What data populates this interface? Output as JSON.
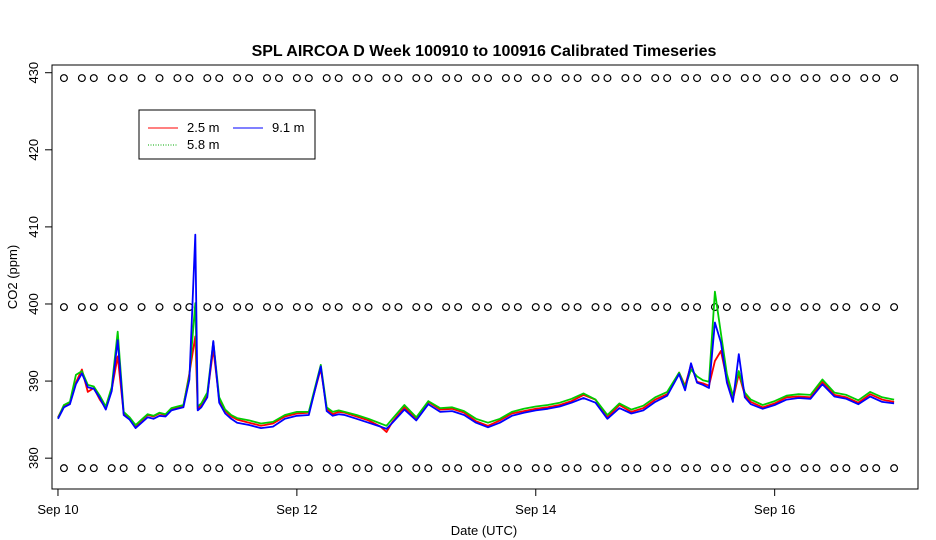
{
  "chart_data": {
    "type": "line",
    "title": "SPL AIRCOA D  Week 100910 to 100916  Calibrated Timeseries",
    "xlabel": "Date (UTC)",
    "ylabel": "CO2 (ppm)",
    "xlim": [
      -0.05,
      7.2
    ],
    "ylim": [
      376,
      431
    ],
    "x_ticks": [
      0,
      2,
      4,
      6
    ],
    "x_tick_labels": [
      "Sep 10",
      "Sep 12",
      "Sep 14",
      "Sep 16"
    ],
    "y_ticks": [
      380,
      390,
      400,
      410,
      420,
      430
    ],
    "y_tick_labels": [
      "380",
      "390",
      "400",
      "410",
      "420",
      "430"
    ],
    "legend_position": "top-left",
    "colors": {
      "2.5 m": "#ff0000",
      "5.8 m": "#00cc00",
      "9.1 m": "#0000ff",
      "calibration": "#000000"
    },
    "x_units": "days since Sep 10 00:00 UTC",
    "series": [
      {
        "name": "2.5 m",
        "color": "#ff0000",
        "style": "line",
        "x": [
          0,
          0.05,
          0.1,
          0.15,
          0.2,
          0.25,
          0.3,
          0.35,
          0.4,
          0.45,
          0.5,
          0.55,
          0.6,
          0.65,
          0.7,
          0.75,
          0.8,
          0.85,
          0.9,
          0.95,
          1,
          1.05,
          1.1,
          1.15,
          1.17,
          1.2,
          1.25,
          1.3,
          1.35,
          1.4,
          1.45,
          1.5,
          1.6,
          1.7,
          1.8,
          1.9,
          2,
          2.1,
          2.2,
          2.25,
          2.3,
          2.35,
          2.4,
          2.5,
          2.6,
          2.7,
          2.75,
          2.8,
          2.9,
          3,
          3.1,
          3.2,
          3.3,
          3.4,
          3.5,
          3.6,
          3.7,
          3.8,
          3.9,
          4,
          4.1,
          4.2,
          4.3,
          4.4,
          4.5,
          4.6,
          4.7,
          4.8,
          4.9,
          5,
          5.1,
          5.2,
          5.25,
          5.3,
          5.35,
          5.4,
          5.45,
          5.5,
          5.55,
          5.6,
          5.65,
          5.7,
          5.75,
          5.8,
          5.9,
          6,
          6.1,
          6.2,
          6.3,
          6.4,
          6.5,
          6.6,
          6.7,
          6.8,
          6.9,
          7
        ],
        "y": [
          385.3,
          386.8,
          387.2,
          389.8,
          391.5,
          388.6,
          389.1,
          387.6,
          386.5,
          388.9,
          393.2,
          385.8,
          385.2,
          384.1,
          384.9,
          385.6,
          385.4,
          385.8,
          385.6,
          386.4,
          386.6,
          386.8,
          391,
          395.8,
          386.4,
          386.9,
          388.2,
          394.2,
          387.6,
          386.1,
          385.4,
          385,
          384.6,
          384.2,
          384.5,
          385.4,
          385.8,
          385.9,
          391.6,
          386.4,
          385.7,
          386,
          385.9,
          385.4,
          384.9,
          384.1,
          383.4,
          384.7,
          386.6,
          385.1,
          387.3,
          386.3,
          386.4,
          385.9,
          384.8,
          384.2,
          384.9,
          385.8,
          386.1,
          386.4,
          386.6,
          386.9,
          387.4,
          388.2,
          387.6,
          385.3,
          386.9,
          386,
          386.5,
          387.6,
          388.3,
          391.1,
          389.4,
          392.1,
          389.9,
          389.7,
          389.4,
          392.6,
          393.9,
          390.2,
          387.6,
          390.9,
          388.2,
          387.3,
          386.6,
          387.1,
          387.9,
          388,
          387.9,
          389.9,
          388.2,
          387.9,
          387.2,
          388.3,
          387.6,
          387.3
        ]
      },
      {
        "name": "5.8 m",
        "color": "#00cc00",
        "style": "line",
        "x": [
          0,
          0.05,
          0.1,
          0.15,
          0.2,
          0.25,
          0.3,
          0.35,
          0.4,
          0.45,
          0.5,
          0.55,
          0.6,
          0.65,
          0.7,
          0.75,
          0.8,
          0.85,
          0.9,
          0.95,
          1,
          1.05,
          1.1,
          1.15,
          1.17,
          1.2,
          1.25,
          1.3,
          1.35,
          1.4,
          1.45,
          1.5,
          1.6,
          1.7,
          1.8,
          1.9,
          2,
          2.1,
          2.2,
          2.25,
          2.3,
          2.35,
          2.4,
          2.5,
          2.6,
          2.7,
          2.75,
          2.8,
          2.9,
          3,
          3.1,
          3.2,
          3.3,
          3.4,
          3.5,
          3.6,
          3.7,
          3.8,
          3.9,
          4,
          4.1,
          4.2,
          4.3,
          4.4,
          4.5,
          4.6,
          4.7,
          4.8,
          4.9,
          5,
          5.1,
          5.2,
          5.25,
          5.3,
          5.35,
          5.4,
          5.45,
          5.5,
          5.55,
          5.6,
          5.65,
          5.7,
          5.75,
          5.8,
          5.9,
          6,
          6.1,
          6.2,
          6.3,
          6.4,
          6.5,
          6.6,
          6.7,
          6.8,
          6.9,
          7
        ],
        "y": [
          385.2,
          386.9,
          387.3,
          390.8,
          391.3,
          389.5,
          389.3,
          388.1,
          386.7,
          389.2,
          396.4,
          386,
          385.3,
          384.3,
          385,
          385.7,
          385.5,
          385.9,
          385.7,
          386.5,
          386.7,
          386.9,
          390.7,
          400.1,
          386.7,
          387.1,
          388.5,
          395.1,
          387.9,
          386.3,
          385.6,
          385.2,
          384.9,
          384.5,
          384.7,
          385.6,
          386,
          386,
          392.1,
          386.6,
          386,
          386.2,
          386,
          385.6,
          385.1,
          384.5,
          384.2,
          385.1,
          386.9,
          385.3,
          387.4,
          386.5,
          386.6,
          386.1,
          385.1,
          384.6,
          385.1,
          386,
          386.4,
          386.7,
          386.9,
          387.2,
          387.7,
          388.4,
          387.6,
          385.6,
          387.1,
          386.3,
          386.8,
          387.9,
          388.6,
          391.1,
          389.2,
          391.5,
          390.6,
          390.1,
          389.9,
          401.6,
          396.2,
          390.9,
          388.1,
          391.3,
          388.5,
          387.6,
          386.9,
          387.4,
          388.1,
          388.3,
          388.2,
          390.2,
          388.5,
          388.2,
          387.5,
          388.6,
          387.9,
          387.6
        ]
      },
      {
        "name": "9.1 m",
        "color": "#0000ff",
        "style": "line",
        "x": [
          0,
          0.05,
          0.1,
          0.15,
          0.2,
          0.25,
          0.3,
          0.35,
          0.4,
          0.45,
          0.5,
          0.55,
          0.6,
          0.65,
          0.7,
          0.75,
          0.8,
          0.85,
          0.9,
          0.95,
          1,
          1.05,
          1.1,
          1.15,
          1.17,
          1.2,
          1.25,
          1.3,
          1.35,
          1.4,
          1.45,
          1.5,
          1.6,
          1.7,
          1.8,
          1.9,
          2,
          2.1,
          2.2,
          2.25,
          2.3,
          2.35,
          2.4,
          2.5,
          2.6,
          2.7,
          2.75,
          2.8,
          2.9,
          3,
          3.1,
          3.2,
          3.3,
          3.4,
          3.5,
          3.6,
          3.7,
          3.8,
          3.9,
          4,
          4.1,
          4.2,
          4.3,
          4.4,
          4.5,
          4.6,
          4.7,
          4.8,
          4.9,
          5,
          5.1,
          5.2,
          5.25,
          5.3,
          5.35,
          5.4,
          5.45,
          5.5,
          5.55,
          5.6,
          5.65,
          5.7,
          5.75,
          5.8,
          5.9,
          6,
          6.1,
          6.2,
          6.3,
          6.4,
          6.5,
          6.6,
          6.7,
          6.8,
          6.9,
          7
        ],
        "y": [
          385.1,
          386.6,
          387,
          389.6,
          391,
          389.2,
          389,
          387.8,
          386.3,
          388.7,
          395.3,
          385.6,
          385,
          383.9,
          384.6,
          385.3,
          385.1,
          385.5,
          385.4,
          386.2,
          386.4,
          386.6,
          390.2,
          409,
          386.2,
          386.6,
          387.9,
          395.2,
          387.2,
          385.8,
          385.1,
          384.6,
          384.3,
          383.9,
          384.1,
          385.1,
          385.5,
          385.6,
          391.9,
          386.1,
          385.5,
          385.7,
          385.6,
          385.1,
          384.6,
          384.1,
          383.8,
          384.6,
          386.3,
          384.9,
          387,
          386,
          386.1,
          385.6,
          384.6,
          384,
          384.6,
          385.5,
          385.9,
          386.2,
          386.4,
          386.7,
          387.2,
          387.8,
          387.2,
          385.1,
          386.5,
          385.8,
          386.2,
          387.3,
          388.1,
          390.9,
          388.8,
          392.3,
          389.8,
          389.5,
          389.1,
          397.6,
          395,
          389.8,
          387.3,
          393.5,
          387.9,
          387,
          386.4,
          386.9,
          387.6,
          387.8,
          387.7,
          389.6,
          388,
          387.7,
          387,
          388,
          387.3,
          387.1
        ]
      },
      {
        "name": "",
        "color": "#000000",
        "style": "points",
        "x": [
          0.05,
          0.2,
          0.3,
          0.45,
          0.55,
          0.7,
          0.85,
          1,
          1.1,
          1.25,
          1.35,
          1.5,
          1.6,
          1.75,
          1.85,
          2,
          2.1,
          2.25,
          2.35,
          2.5,
          2.6,
          2.75,
          2.85,
          3,
          3.1,
          3.25,
          3.35,
          3.5,
          3.6,
          3.75,
          3.85,
          4,
          4.1,
          4.25,
          4.35,
          4.5,
          4.6,
          4.75,
          4.85,
          5,
          5.1,
          5.25,
          5.35,
          5.5,
          5.6,
          5.75,
          5.85,
          6,
          6.1,
          6.25,
          6.35,
          6.5,
          6.6,
          6.75,
          6.85,
          7
        ],
        "y": [
          429.3,
          429.3,
          429.3,
          429.3,
          429.3,
          429.3,
          429.3,
          429.3,
          429.3,
          429.3,
          429.3,
          429.3,
          429.3,
          429.3,
          429.3,
          429.3,
          429.3,
          429.3,
          429.3,
          429.3,
          429.3,
          429.3,
          429.3,
          429.3,
          429.3,
          429.3,
          429.3,
          429.3,
          429.3,
          429.3,
          429.3,
          429.3,
          429.3,
          429.3,
          429.3,
          429.3,
          429.3,
          429.3,
          429.3,
          429.3,
          429.3,
          429.3,
          429.3,
          429.3,
          429.3,
          429.3,
          429.3,
          429.3,
          429.3,
          429.3,
          429.3,
          429.3,
          429.3,
          429.3,
          429.3,
          429.3
        ]
      },
      {
        "name": "",
        "color": "#000000",
        "style": "points",
        "x": [
          0.05,
          0.2,
          0.3,
          0.45,
          0.55,
          0.7,
          0.85,
          1,
          1.1,
          1.25,
          1.35,
          1.5,
          1.6,
          1.75,
          1.85,
          2,
          2.1,
          2.25,
          2.35,
          2.5,
          2.6,
          2.75,
          2.85,
          3,
          3.1,
          3.25,
          3.35,
          3.5,
          3.6,
          3.75,
          3.85,
          4,
          4.1,
          4.25,
          4.35,
          4.5,
          4.6,
          4.75,
          4.85,
          5,
          5.1,
          5.25,
          5.35,
          5.5,
          5.6,
          5.75,
          5.85,
          6,
          6.1,
          6.25,
          6.35,
          6.5,
          6.6,
          6.75,
          6.85,
          7
        ],
        "y": [
          399.6,
          399.6,
          399.6,
          399.6,
          399.6,
          399.6,
          399.6,
          399.6,
          399.6,
          399.6,
          399.6,
          399.6,
          399.6,
          399.6,
          399.6,
          399.6,
          399.6,
          399.6,
          399.6,
          399.6,
          399.6,
          399.6,
          399.6,
          399.6,
          399.6,
          399.6,
          399.6,
          399.6,
          399.6,
          399.6,
          399.6,
          399.6,
          399.6,
          399.6,
          399.6,
          399.6,
          399.6,
          399.6,
          399.6,
          399.6,
          399.6,
          399.6,
          399.6,
          399.6,
          399.6,
          399.6,
          399.6,
          399.6,
          399.6,
          399.6,
          399.6,
          399.6,
          399.6,
          399.6,
          399.6,
          399.6
        ]
      },
      {
        "name": "",
        "color": "#000000",
        "style": "points",
        "x": [
          0.05,
          0.2,
          0.3,
          0.45,
          0.55,
          0.7,
          0.85,
          1,
          1.1,
          1.25,
          1.35,
          1.5,
          1.6,
          1.75,
          1.85,
          2,
          2.1,
          2.25,
          2.35,
          2.5,
          2.6,
          2.75,
          2.85,
          3,
          3.1,
          3.25,
          3.35,
          3.5,
          3.6,
          3.75,
          3.85,
          4,
          4.1,
          4.25,
          4.35,
          4.5,
          4.6,
          4.75,
          4.85,
          5,
          5.1,
          5.25,
          5.35,
          5.5,
          5.6,
          5.75,
          5.85,
          6,
          6.1,
          6.25,
          6.35,
          6.5,
          6.6,
          6.75,
          6.85,
          7
        ],
        "y": [
          378.7,
          378.7,
          378.7,
          378.7,
          378.7,
          378.7,
          378.7,
          378.7,
          378.7,
          378.7,
          378.7,
          378.7,
          378.7,
          378.7,
          378.7,
          378.7,
          378.7,
          378.7,
          378.7,
          378.7,
          378.7,
          378.7,
          378.7,
          378.7,
          378.7,
          378.7,
          378.7,
          378.7,
          378.7,
          378.7,
          378.7,
          378.7,
          378.7,
          378.7,
          378.7,
          378.7,
          378.7,
          378.7,
          378.7,
          378.7,
          378.7,
          378.7,
          378.7,
          378.7,
          378.7,
          378.7,
          378.7,
          378.7,
          378.7,
          378.7,
          378.7,
          378.7,
          378.7,
          378.7,
          378.7,
          378.7
        ]
      }
    ],
    "legend": [
      {
        "label": "2.5 m",
        "color": "#ff0000"
      },
      {
        "label": "9.1 m",
        "color": "#0000ff"
      },
      {
        "label": "5.8 m",
        "color": "#00cc00"
      }
    ]
  }
}
